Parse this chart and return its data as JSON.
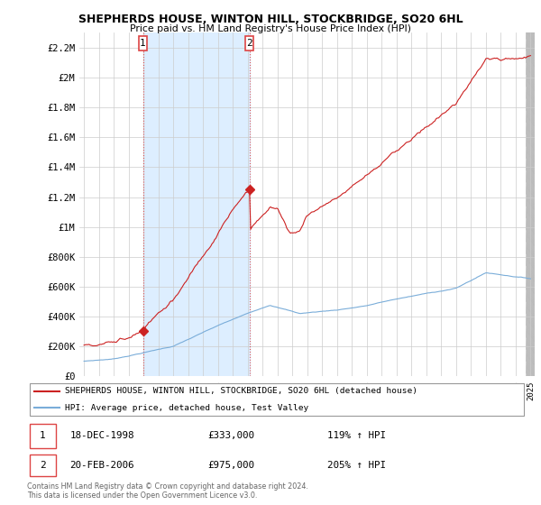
{
  "title": "SHEPHERDS HOUSE, WINTON HILL, STOCKBRIDGE, SO20 6HL",
  "subtitle": "Price paid vs. HM Land Registry's House Price Index (HPI)",
  "legend_line1": "SHEPHERDS HOUSE, WINTON HILL, STOCKBRIDGE, SO20 6HL (detached house)",
  "legend_line2": "HPI: Average price, detached house, Test Valley",
  "footer": "Contains HM Land Registry data © Crown copyright and database right 2024.\nThis data is licensed under the Open Government Licence v3.0.",
  "transaction1_date": "18-DEC-1998",
  "transaction1_price": "£333,000",
  "transaction1_hpi": "119% ↑ HPI",
  "transaction1_year": 1998.96,
  "transaction1_value": 333000,
  "transaction2_date": "20-FEB-2006",
  "transaction2_price": "£975,000",
  "transaction2_hpi": "205% ↑ HPI",
  "transaction2_year": 2006.13,
  "transaction2_value": 975000,
  "hpi_color": "#7aadd9",
  "price_color": "#cc2222",
  "vline_color": "#dd4444",
  "shade_color": "#ddeeff",
  "ylim": [
    0,
    2300000
  ],
  "yticks": [
    0,
    200000,
    400000,
    600000,
    800000,
    1000000,
    1200000,
    1400000,
    1600000,
    1800000,
    2000000,
    2200000
  ],
  "ytick_labels": [
    "£0",
    "£200K",
    "£400K",
    "£600K",
    "£800K",
    "£1M",
    "£1.2M",
    "£1.4M",
    "£1.6M",
    "£1.8M",
    "£2M",
    "£2.2M"
  ],
  "xlim_start": 1994.7,
  "xlim_end": 2025.3,
  "background_color": "#ffffff",
  "grid_color": "#cccccc"
}
